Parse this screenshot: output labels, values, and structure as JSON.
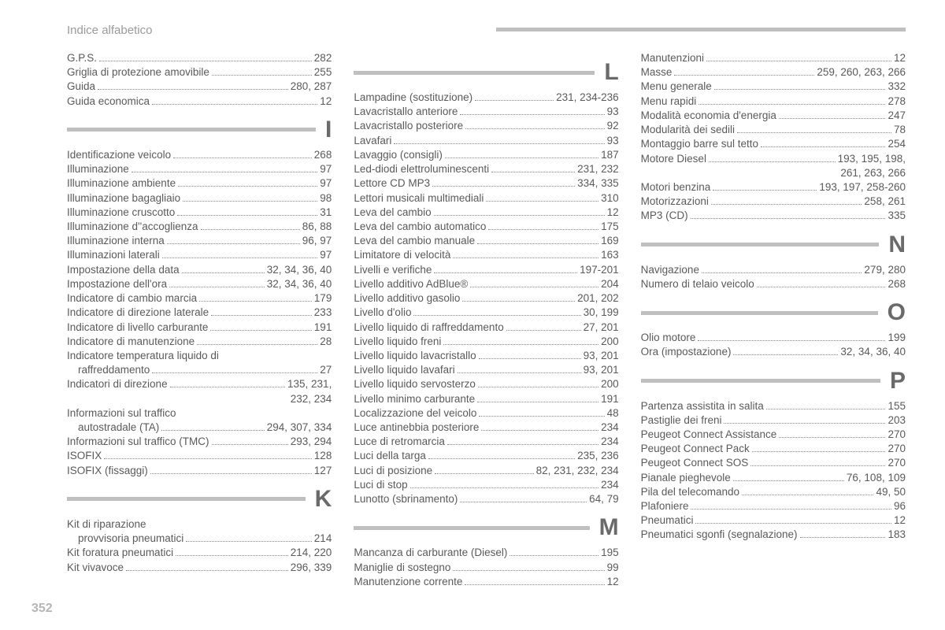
{
  "header": "Indice alfabetico",
  "pageNumber": "352",
  "columns": [
    {
      "groups": [
        {
          "letter": null,
          "entries": [
            {
              "label": "G.P.S.",
              "pages": "282"
            },
            {
              "label": "Griglia di protezione amovibile",
              "pages": "255"
            },
            {
              "label": "Guida",
              "pages": "280, 287"
            },
            {
              "label": "Guida economica",
              "pages": "12"
            }
          ]
        },
        {
          "letter": "I",
          "entries": [
            {
              "label": "Identificazione veicolo",
              "pages": "268"
            },
            {
              "label": "Illuminazione",
              "pages": "97"
            },
            {
              "label": "Illuminazione ambiente",
              "pages": "97"
            },
            {
              "label": "Illuminazione bagagliaio",
              "pages": "98"
            },
            {
              "label": "Illuminazione cruscotto",
              "pages": "31"
            },
            {
              "label": "Illuminazione d''accoglienza",
              "pages": "86, 88"
            },
            {
              "label": "Illuminazione interna",
              "pages": "96, 97"
            },
            {
              "label": "Illuminazioni laterali",
              "pages": "97"
            },
            {
              "label": "Impostazione della data",
              "pages": "32, 34, 36, 40"
            },
            {
              "label": "Impostazione dell'ora",
              "pages": "32, 34, 36, 40"
            },
            {
              "label": "Indicatore di cambio marcia",
              "pages": "179"
            },
            {
              "label": "Indicatore di direzione laterale",
              "pages": "233"
            },
            {
              "label": "Indicatore di livello carburante",
              "pages": "191"
            },
            {
              "label": "Indicatore di manutenzione",
              "pages": "28"
            },
            {
              "label": "Indicatore temperatura liquido di",
              "nodots": true
            },
            {
              "label": "raffreddamento",
              "pages": "27",
              "indent": true
            },
            {
              "label": "Indicatori di direzione",
              "pages": "135, 231,"
            },
            {
              "cont": true,
              "pages": "232, 234"
            },
            {
              "label": "Informazioni sul traffico",
              "nodots": true
            },
            {
              "label": "autostradale (TA)",
              "pages": "294, 307, 334",
              "indent": true
            },
            {
              "label": "Informazioni sul traffico (TMC)",
              "pages": "293, 294"
            },
            {
              "label": "ISOFIX",
              "pages": "128"
            },
            {
              "label": "ISOFIX (fissaggi)",
              "pages": "127"
            }
          ]
        },
        {
          "letter": "K",
          "entries": [
            {
              "label": "Kit di riparazione",
              "nodots": true
            },
            {
              "label": "provvisoria pneumatici",
              "pages": "214",
              "indent": true
            },
            {
              "label": "Kit foratura pneumatici",
              "pages": "214, 220"
            },
            {
              "label": "Kit vivavoce",
              "pages": "296, 339"
            }
          ]
        }
      ]
    },
    {
      "groups": [
        {
          "letter": "L",
          "entries": [
            {
              "label": "Lampadine (sostituzione)",
              "pages": "231, 234-236"
            },
            {
              "label": "Lavacristallo anteriore",
              "pages": "93"
            },
            {
              "label": "Lavacristallo posteriore",
              "pages": "92"
            },
            {
              "label": "Lavafari",
              "pages": "93"
            },
            {
              "label": "Lavaggio (consigli)",
              "pages": "187"
            },
            {
              "label": "Led-diodi elettroluminescenti",
              "pages": "231, 232"
            },
            {
              "label": "Lettore CD MP3",
              "pages": "334, 335"
            },
            {
              "label": "Lettori musicali multimediali",
              "pages": "310"
            },
            {
              "label": "Leva del cambio",
              "pages": "12"
            },
            {
              "label": "Leva del cambio automatico",
              "pages": "175"
            },
            {
              "label": "Leva del cambio manuale",
              "pages": "169"
            },
            {
              "label": "Limitatore di velocità",
              "pages": "163"
            },
            {
              "label": "Livelli e verifiche",
              "pages": "197-201"
            },
            {
              "label": "Livello additivo AdBlue®",
              "pages": "204"
            },
            {
              "label": "Livello additivo gasolio",
              "pages": "201, 202"
            },
            {
              "label": "Livello d'olio",
              "pages": "30, 199"
            },
            {
              "label": "Livello liquido di raffreddamento",
              "pages": "27, 201"
            },
            {
              "label": "Livello liquido freni",
              "pages": "200"
            },
            {
              "label": "Livello liquido lavacristallo",
              "pages": "93, 201"
            },
            {
              "label": "Livello liquido lavafari",
              "pages": "93, 201"
            },
            {
              "label": "Livello liquido servosterzo",
              "pages": "200"
            },
            {
              "label": "Livello minimo carburante",
              "pages": "191"
            },
            {
              "label": "Localizzazione del veicolo",
              "pages": "48"
            },
            {
              "label": "Luce antinebbia posteriore",
              "pages": "234"
            },
            {
              "label": "Luce di retromarcia",
              "pages": "234"
            },
            {
              "label": "Luci della targa",
              "pages": "235, 236"
            },
            {
              "label": "Luci di posizione",
              "pages": "82, 231, 232, 234"
            },
            {
              "label": "Luci di stop",
              "pages": "234"
            },
            {
              "label": "Lunotto (sbrinamento)",
              "pages": "64, 79"
            }
          ]
        },
        {
          "letter": "M",
          "entries": [
            {
              "label": "Mancanza di carburante (Diesel)",
              "pages": "195"
            },
            {
              "label": "Maniglie di sostegno",
              "pages": "99"
            },
            {
              "label": "Manutenzione corrente",
              "pages": "12"
            }
          ]
        }
      ]
    },
    {
      "groups": [
        {
          "letter": null,
          "entries": [
            {
              "label": "Manutenzioni",
              "pages": "12"
            },
            {
              "label": "Masse",
              "pages": "259, 260, 263, 266"
            },
            {
              "label": "Menu generale",
              "pages": "332"
            },
            {
              "label": "Menu rapidi",
              "pages": "278"
            },
            {
              "label": "Modalità economia d'energia",
              "pages": "247"
            },
            {
              "label": "Modularità dei sedili",
              "pages": "78"
            },
            {
              "label": "Montaggio barre sul tetto",
              "pages": "254"
            },
            {
              "label": "Motore Diesel",
              "pages": "193, 195, 198,"
            },
            {
              "cont": true,
              "pages": "261, 263, 266"
            },
            {
              "label": "Motori benzina",
              "pages": "193, 197, 258-260"
            },
            {
              "label": "Motorizzazioni",
              "pages": "258, 261"
            },
            {
              "label": "MP3 (CD)",
              "pages": "335"
            }
          ]
        },
        {
          "letter": "N",
          "entries": [
            {
              "label": "Navigazione",
              "pages": "279, 280"
            },
            {
              "label": "Numero di telaio veicolo",
              "pages": "268"
            }
          ]
        },
        {
          "letter": "O",
          "entries": [
            {
              "label": "Olio motore",
              "pages": "199"
            },
            {
              "label": "Ora (impostazione)",
              "pages": "32, 34, 36, 40"
            }
          ]
        },
        {
          "letter": "P",
          "entries": [
            {
              "label": "Partenza assistita in salita",
              "pages": "155"
            },
            {
              "label": "Pastiglie dei freni",
              "pages": "203"
            },
            {
              "label": "Peugeot Connect Assistance",
              "pages": "270"
            },
            {
              "label": "Peugeot Connect Pack",
              "pages": "270"
            },
            {
              "label": "Peugeot Connect SOS",
              "pages": "270"
            },
            {
              "label": "Pianale pieghevole",
              "pages": "76, 108, 109"
            },
            {
              "label": "Pila del telecomando",
              "pages": "49, 50"
            },
            {
              "label": "Plafoniere",
              "pages": "96"
            },
            {
              "label": "Pneumatici",
              "pages": "12"
            },
            {
              "label": "Pneumatici sgonfi (segnalazione)",
              "pages": "183"
            }
          ]
        }
      ]
    }
  ]
}
